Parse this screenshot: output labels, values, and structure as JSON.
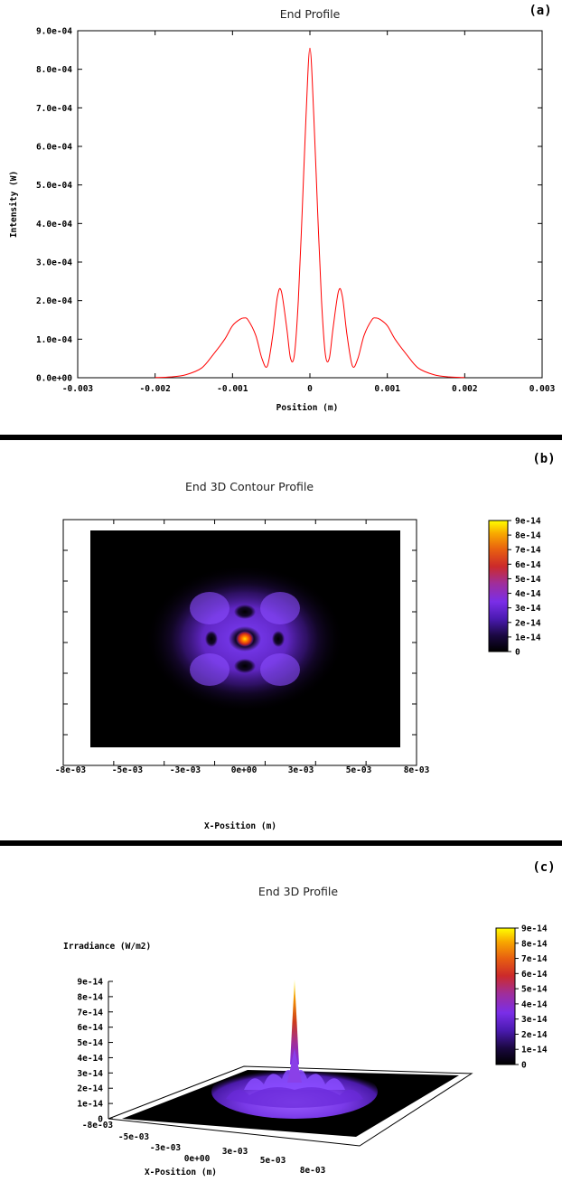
{
  "chart_data": [
    {
      "panel_label": "(a)",
      "type": "line",
      "title": "End Profile",
      "xlabel": "Position (m)",
      "ylabel": "Intensity (W)",
      "xlim": [
        -0.003,
        0.003
      ],
      "ylim": [
        0,
        0.0009
      ],
      "x_ticks": [
        "-0.003",
        "-0.002",
        "-0.001",
        "0",
        "0.001",
        "0.002",
        "0.003"
      ],
      "y_ticks": [
        "0.0e+00",
        "1.0e-04",
        "2.0e-04",
        "3.0e-04",
        "4.0e-04",
        "5.0e-04",
        "6.0e-04",
        "7.0e-04",
        "8.0e-04",
        "9.0e-04"
      ],
      "grid": false,
      "line_color": "#ff0000",
      "series": [
        {
          "x": [
            -0.002,
            -0.0018,
            -0.0016,
            -0.0014,
            -0.00125,
            -0.0011,
            -0.001,
            -0.0009,
            -0.00085,
            -0.0008,
            -0.0007,
            -0.00062,
            -0.00055,
            -0.00048,
            -0.00042,
            -0.00037,
            -0.0003,
            -0.00025,
            -0.0002,
            -0.00015,
            -0.0001,
            -5e-05,
            0,
            5e-05,
            0.0001,
            0.00015,
            0.0002,
            0.00025,
            0.0003,
            0.00037,
            0.00042,
            0.00048,
            0.00055,
            0.00062,
            0.0007,
            0.0008,
            0.00085,
            0.0009,
            0.001,
            0.0011,
            0.00125,
            0.0014,
            0.0016,
            0.0018,
            0.002
          ],
          "y": [
            5e-07,
            2e-06,
            8e-06,
            2.5e-05,
            6e-05,
            0.0001,
            0.000135,
            0.000152,
            0.000155,
            0.00015,
            0.00011,
            5e-05,
            3e-05,
            0.00011,
            0.00021,
            0.000225,
            0.00013,
            5e-05,
            6e-05,
            0.0002,
            0.00043,
            0.00068,
            0.000855,
            0.00068,
            0.00043,
            0.0002,
            6e-05,
            5e-05,
            0.00013,
            0.000225,
            0.00021,
            0.00011,
            3e-05,
            5e-05,
            0.00011,
            0.00015,
            0.000155,
            0.000152,
            0.000135,
            0.0001,
            6e-05,
            2.5e-05,
            8e-06,
            2e-06,
            5e-07
          ]
        }
      ]
    },
    {
      "panel_label": "(b)",
      "type": "heatmap",
      "title": "End 3D Contour Profile",
      "xlabel": "X-Position (m)",
      "x_ticks": [
        "-8e-03",
        "-5e-03",
        "-3e-03",
        "0e+00",
        "3e-03",
        "5e-03",
        "8e-03"
      ],
      "colorbar_ticks": [
        "9e-14",
        "8e-14",
        "7e-14",
        "6e-14",
        "5e-14",
        "4e-14",
        "3e-14",
        "2e-14",
        "1e-14",
        "0"
      ],
      "value_range": [
        0,
        9e-14
      ]
    },
    {
      "panel_label": "(c)",
      "type": "surface",
      "title": "End 3D Profile",
      "xlabel": "X-Position (m)",
      "zlabel": "Irradiance (W/m2)",
      "x_ticks": [
        "-8e-03",
        "-5e-03",
        "-3e-03",
        "0e+00",
        "3e-03",
        "5e-03",
        "8e-03"
      ],
      "z_ticks": [
        "9e-14",
        "8e-14",
        "7e-14",
        "6e-14",
        "5e-14",
        "4e-14",
        "3e-14",
        "2e-14",
        "1e-14",
        "0"
      ],
      "colorbar_ticks": [
        "9e-14",
        "8e-14",
        "7e-14",
        "6e-14",
        "5e-14",
        "4e-14",
        "3e-14",
        "2e-14",
        "1e-14",
        "0"
      ],
      "peak_value": 9e-14
    }
  ]
}
